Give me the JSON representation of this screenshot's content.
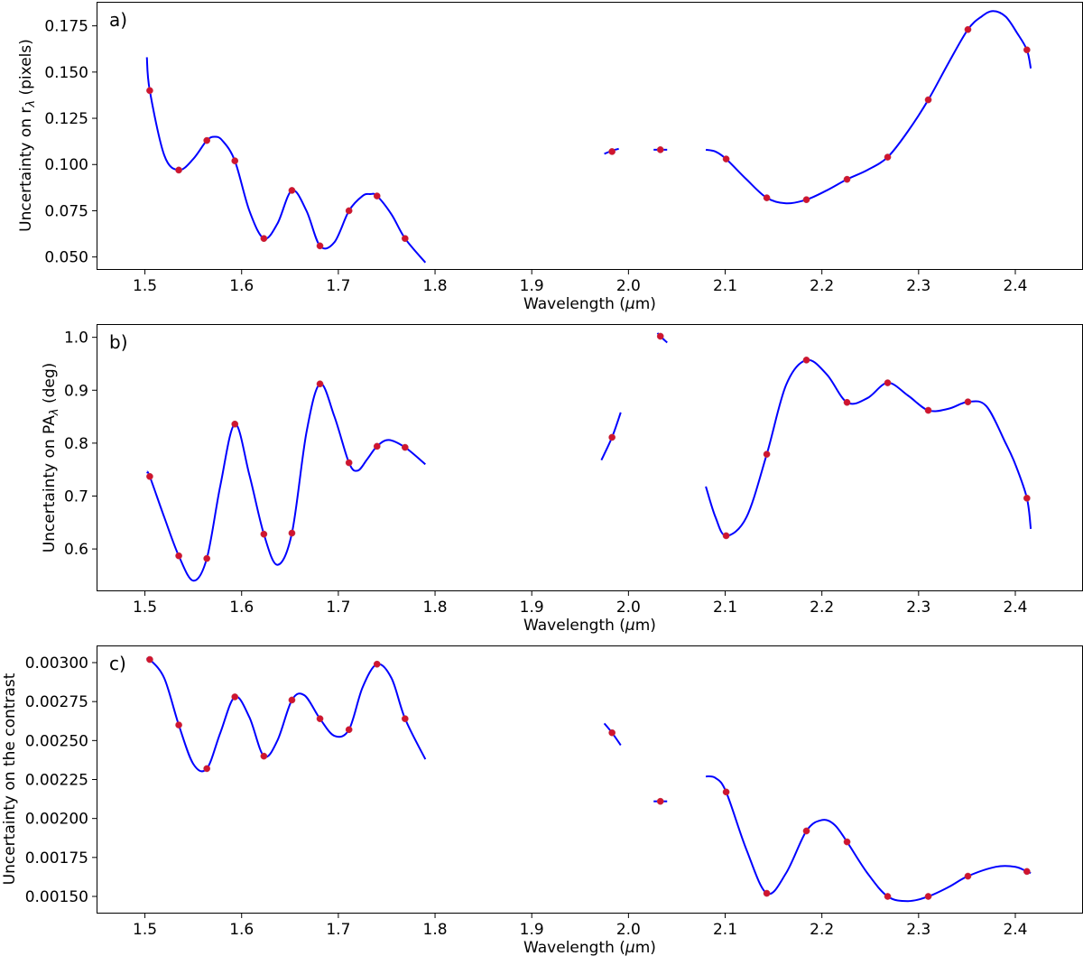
{
  "chart_data": [
    {
      "type": "line",
      "panel_label": "a)",
      "xlabel": "Wavelength (μm)",
      "ylabel": "Uncertainty on rλ (pixels)",
      "xlim": [
        1.45,
        2.47
      ],
      "ylim": [
        0.043,
        0.188
      ],
      "xticks": [
        1.5,
        1.6,
        1.7,
        1.8,
        1.9,
        2.0,
        2.1,
        2.2,
        2.3,
        2.4
      ],
      "xtick_labels": [
        "1.5",
        "1.6",
        "1.7",
        "1.8",
        "1.9",
        "2.0",
        "2.1",
        "2.2",
        "2.3",
        "2.4"
      ],
      "yticks": [
        0.05,
        0.075,
        0.1,
        0.125,
        0.15,
        0.175
      ],
      "ytick_labels": [
        "0.050",
        "0.075",
        "0.100",
        "0.125",
        "0.150",
        "0.175"
      ],
      "points": {
        "x": [
          1.505,
          1.535,
          1.564,
          1.593,
          1.623,
          1.652,
          1.681,
          1.711,
          1.74,
          1.769,
          1.983,
          2.033,
          2.101,
          2.143,
          2.184,
          2.226,
          2.268,
          2.31,
          2.351,
          2.412
        ],
        "y": [
          0.14,
          0.097,
          0.113,
          0.102,
          0.06,
          0.086,
          0.056,
          0.075,
          0.083,
          0.06,
          0.107,
          0.108,
          0.103,
          0.082,
          0.081,
          0.092,
          0.104,
          0.135,
          0.173,
          0.162
        ]
      },
      "fit_segments": [
        {
          "x": [
            1.502,
            1.505,
            1.52,
            1.535,
            1.55,
            1.564,
            1.572,
            1.58,
            1.593,
            1.608,
            1.623,
            1.637,
            1.652,
            1.667,
            1.681,
            1.696,
            1.711,
            1.725,
            1.733,
            1.74,
            1.755,
            1.769,
            1.79
          ],
          "y": [
            0.158,
            0.14,
            0.105,
            0.097,
            0.103,
            0.113,
            0.115,
            0.113,
            0.102,
            0.075,
            0.06,
            0.068,
            0.086,
            0.075,
            0.056,
            0.058,
            0.075,
            0.083,
            0.084,
            0.083,
            0.073,
            0.06,
            0.047
          ]
        },
        {
          "x": [
            1.975,
            1.983,
            1.99
          ],
          "y": [
            0.1058,
            0.1075,
            0.1085
          ]
        },
        {
          "x": [
            2.026,
            2.033,
            2.04
          ],
          "y": [
            0.108,
            0.108,
            0.108
          ]
        },
        {
          "x": [
            2.08,
            2.09,
            2.101,
            2.122,
            2.143,
            2.163,
            2.184,
            2.205,
            2.226,
            2.247,
            2.268,
            2.289,
            2.31,
            2.331,
            2.351,
            2.365,
            2.377,
            2.39,
            2.402,
            2.412,
            2.416
          ],
          "y": [
            0.108,
            0.107,
            0.103,
            0.092,
            0.082,
            0.079,
            0.081,
            0.086,
            0.092,
            0.097,
            0.104,
            0.118,
            0.135,
            0.155,
            0.173,
            0.18,
            0.183,
            0.18,
            0.171,
            0.162,
            0.152
          ]
        }
      ]
    },
    {
      "type": "line",
      "panel_label": "b)",
      "xlabel": "Wavelength (μm)",
      "ylabel": "Uncertainty on PAλ (deg)",
      "xlim": [
        1.45,
        2.47
      ],
      "ylim": [
        0.52,
        1.025
      ],
      "xticks": [
        1.5,
        1.6,
        1.7,
        1.8,
        1.9,
        2.0,
        2.1,
        2.2,
        2.3,
        2.4
      ],
      "xtick_labels": [
        "1.5",
        "1.6",
        "1.7",
        "1.8",
        "1.9",
        "2.0",
        "2.1",
        "2.2",
        "2.3",
        "2.4"
      ],
      "yticks": [
        0.6,
        0.7,
        0.8,
        0.9,
        1.0
      ],
      "ytick_labels": [
        "0.6",
        "0.7",
        "0.8",
        "0.9",
        "1.0"
      ],
      "points": {
        "x": [
          1.505,
          1.535,
          1.564,
          1.593,
          1.623,
          1.652,
          1.681,
          1.711,
          1.74,
          1.769,
          1.983,
          2.033,
          2.101,
          2.143,
          2.184,
          2.226,
          2.268,
          2.31,
          2.351,
          2.412
        ],
        "y": [
          0.737,
          0.587,
          0.582,
          0.836,
          0.628,
          0.63,
          0.912,
          0.763,
          0.794,
          0.792,
          0.811,
          1.002,
          0.625,
          0.779,
          0.957,
          0.877,
          0.914,
          0.862,
          0.878,
          0.696
        ]
      },
      "fit_segments": [
        {
          "x": [
            1.502,
            1.505,
            1.52,
            1.535,
            1.55,
            1.564,
            1.578,
            1.593,
            1.608,
            1.623,
            1.637,
            1.652,
            1.667,
            1.681,
            1.696,
            1.711,
            1.72,
            1.73,
            1.74,
            1.752,
            1.769,
            1.79
          ],
          "y": [
            0.745,
            0.737,
            0.66,
            0.587,
            0.54,
            0.582,
            0.72,
            0.836,
            0.74,
            0.628,
            0.57,
            0.63,
            0.82,
            0.912,
            0.85,
            0.763,
            0.748,
            0.77,
            0.794,
            0.806,
            0.792,
            0.76
          ]
        },
        {
          "x": [
            1.972,
            1.983,
            1.992
          ],
          "y": [
            0.768,
            0.811,
            0.858
          ]
        },
        {
          "x": [
            2.03,
            2.033,
            2.04
          ],
          "y": [
            1.008,
            1.002,
            0.99
          ]
        },
        {
          "x": [
            2.08,
            2.09,
            2.101,
            2.122,
            2.143,
            2.163,
            2.184,
            2.205,
            2.226,
            2.247,
            2.268,
            2.289,
            2.31,
            2.331,
            2.351,
            2.37,
            2.39,
            2.4,
            2.412,
            2.416
          ],
          "y": [
            0.718,
            0.66,
            0.625,
            0.66,
            0.779,
            0.91,
            0.957,
            0.93,
            0.877,
            0.885,
            0.914,
            0.89,
            0.862,
            0.865,
            0.878,
            0.87,
            0.8,
            0.76,
            0.696,
            0.638
          ]
        }
      ]
    },
    {
      "type": "line",
      "panel_label": "c)",
      "xlabel": "Wavelength (μm)",
      "ylabel": "Uncertainty on the contrast",
      "xlim": [
        1.45,
        2.47
      ],
      "ylim": [
        0.00139,
        0.00311
      ],
      "xticks": [
        1.5,
        1.6,
        1.7,
        1.8,
        1.9,
        2.0,
        2.1,
        2.2,
        2.3,
        2.4
      ],
      "xtick_labels": [
        "1.5",
        "1.6",
        "1.7",
        "1.8",
        "1.9",
        "2.0",
        "2.1",
        "2.2",
        "2.3",
        "2.4"
      ],
      "yticks": [
        0.0015,
        0.00175,
        0.002,
        0.00225,
        0.0025,
        0.00275,
        0.003
      ],
      "ytick_labels": [
        "0.00150",
        "0.00175",
        "0.00200",
        "0.00225",
        "0.00250",
        "0.00275",
        "0.00300"
      ],
      "points": {
        "x": [
          1.505,
          1.535,
          1.564,
          1.593,
          1.623,
          1.652,
          1.681,
          1.711,
          1.74,
          1.769,
          1.983,
          2.033,
          2.101,
          2.143,
          2.184,
          2.226,
          2.268,
          2.31,
          2.351,
          2.412
        ],
        "y": [
          0.00302,
          0.0026,
          0.00232,
          0.00278,
          0.0024,
          0.00276,
          0.00264,
          0.00257,
          0.00299,
          0.00264,
          0.00255,
          0.00211,
          0.00217,
          0.00152,
          0.00192,
          0.00185,
          0.0015,
          0.0015,
          0.00163,
          0.00166
        ]
      },
      "fit_segments": [
        {
          "x": [
            1.502,
            1.505,
            1.52,
            1.535,
            1.55,
            1.564,
            1.578,
            1.593,
            1.608,
            1.623,
            1.637,
            1.652,
            1.665,
            1.681,
            1.696,
            1.711,
            1.725,
            1.74,
            1.755,
            1.769,
            1.79
          ],
          "y": [
            0.00302,
            0.00302,
            0.0029,
            0.0026,
            0.00235,
            0.00232,
            0.00255,
            0.00278,
            0.00265,
            0.0024,
            0.0025,
            0.00276,
            0.00279,
            0.00264,
            0.00253,
            0.00257,
            0.00284,
            0.00299,
            0.0029,
            0.00264,
            0.00238
          ]
        },
        {
          "x": [
            1.975,
            1.983,
            1.992
          ],
          "y": [
            0.00261,
            0.00255,
            0.00247
          ]
        },
        {
          "x": [
            2.026,
            2.033,
            2.04
          ],
          "y": [
            0.00211,
            0.00211,
            0.00211
          ]
        },
        {
          "x": [
            2.08,
            2.09,
            2.101,
            2.122,
            2.143,
            2.163,
            2.184,
            2.2,
            2.213,
            2.226,
            2.247,
            2.268,
            2.289,
            2.31,
            2.331,
            2.351,
            2.38,
            2.4,
            2.412,
            2.416
          ],
          "y": [
            0.00227,
            0.00226,
            0.00217,
            0.0018,
            0.00152,
            0.00165,
            0.00192,
            0.00199,
            0.00196,
            0.00185,
            0.00165,
            0.0015,
            0.00147,
            0.0015,
            0.00156,
            0.00163,
            0.00169,
            0.00169,
            0.00166,
            0.00165
          ]
        }
      ]
    }
  ]
}
